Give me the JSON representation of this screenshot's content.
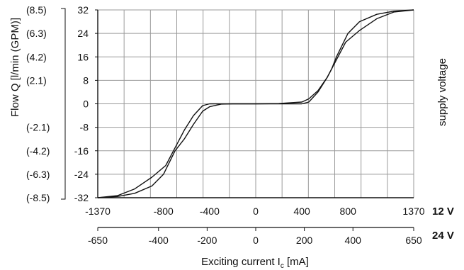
{
  "chart_data": {
    "type": "line",
    "xlabel": "Exciting current I",
    "xlabel_sub": "c",
    "xlabel_unit": " [mA]",
    "ylabel": "Flow Q [l/min (GPM)]",
    "right_label": "supply voltage",
    "xlim": [
      -1370,
      1370
    ],
    "ylim": [
      -32,
      32
    ],
    "x_ticks": [
      -1370,
      -800,
      -400,
      0,
      400,
      800,
      1370
    ],
    "x_tick_labels": [
      "-1370",
      "-800",
      "-400",
      "0",
      "400",
      "800",
      "1370"
    ],
    "x2_tick_values": [
      -650,
      -400,
      -200,
      0,
      200,
      400,
      650
    ],
    "x2_tick_labels": [
      "-650",
      "-400",
      "-200",
      "0",
      "200",
      "400",
      "650"
    ],
    "x_axis_labels": [
      "12 V",
      "24 V"
    ],
    "y_ticks": [
      32,
      24,
      16,
      8,
      0,
      -8,
      -16,
      -24,
      -32
    ],
    "y_tick_labels": [
      "32",
      "24",
      "16",
      "8",
      "0",
      "-8",
      "-16",
      "-24",
      "-32"
    ],
    "y2_tick_labels": [
      "(8.5)",
      "(6.3)",
      "(4.2)",
      "(2.1)",
      "",
      "(-2.1)",
      "(-4.2)",
      "(-6.3)",
      "(-8.5)"
    ],
    "grid": true,
    "series": [
      {
        "x": [
          -1370,
          -1200,
          -1050,
          -900,
          -780,
          -700,
          -620,
          -540,
          -460,
          -400,
          -350,
          -300,
          -200,
          0,
          200,
          400,
          460,
          540,
          620,
          660,
          700,
          800,
          900,
          1050,
          1200,
          1370
        ],
        "y": [
          -32,
          -31.3,
          -29,
          -25,
          -21,
          -15,
          -9,
          -4,
          -0.6,
          0,
          0,
          0,
          0,
          0,
          0.1,
          0.6,
          1.7,
          4.5,
          9,
          12,
          16,
          24,
          28,
          30.5,
          31.6,
          32
        ]
      },
      {
        "x": [
          -1370,
          -1200,
          -1050,
          -900,
          -800,
          -700,
          -620,
          -540,
          -460,
          -400,
          -300,
          -200,
          0,
          200,
          300,
          350,
          400,
          460,
          540,
          620,
          700,
          780,
          900,
          1050,
          1200,
          1370
        ],
        "y": [
          -32,
          -31.6,
          -30.5,
          -28,
          -24,
          -16,
          -12,
          -7,
          -2.5,
          -1,
          -0.1,
          0,
          0,
          0,
          0,
          0,
          0,
          0.6,
          4,
          9,
          15,
          21,
          25,
          29,
          31.3,
          32
        ]
      }
    ]
  }
}
